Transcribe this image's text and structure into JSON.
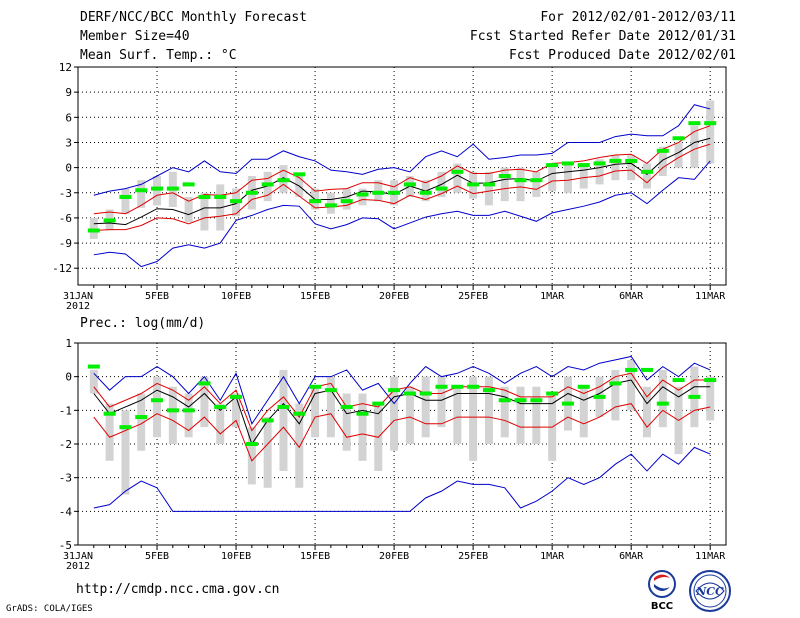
{
  "header": {
    "title": "DERF/NCC/BCC Monthly Forecast",
    "member_size": "Member Size=40",
    "variable": "Mean Surf. Temp.: °C",
    "period": "For 2012/02/01-2012/03/11",
    "fcst_started": "Fcst Started Refer Date 2012/01/31",
    "fcst_produced": "Fcst Produced Date 2012/02/01"
  },
  "footer": {
    "url": "http://cmdp.ncc.cma.gov.cn",
    "credit": "GrADS: COLA/IGES",
    "logo_bcc": "BCC",
    "logo_ncc": "NCC"
  },
  "colors": {
    "box": "#d3d3d3",
    "median": "#00ee00",
    "mean": "#000000",
    "sd_band": "#e00000",
    "extreme": "#0000cc",
    "grid": "#000000"
  },
  "chart_data": [
    {
      "type": "line",
      "title": "Mean Surf. Temp.: °C",
      "x_tick_labels": [
        "31JAN\n2012",
        "5FEB",
        "10FEB",
        "15FEB",
        "20FEB",
        "25FEB",
        "1MAR",
        "6MAR",
        "11MAR"
      ],
      "x_tick_days": [
        0,
        5,
        10,
        15,
        20,
        25,
        30,
        35,
        40
      ],
      "ylim": [
        -14,
        12
      ],
      "yticks": [
        -12,
        -9,
        -6,
        -3,
        0,
        3,
        6,
        9,
        12
      ],
      "days": [
        1,
        2,
        3,
        4,
        5,
        6,
        7,
        8,
        9,
        10,
        11,
        12,
        13,
        14,
        15,
        16,
        17,
        18,
        19,
        20,
        21,
        22,
        23,
        24,
        25,
        26,
        27,
        28,
        29,
        30,
        31,
        32,
        33,
        34,
        35,
        36,
        37,
        38,
        39,
        40
      ],
      "series": [
        {
          "name": "max",
          "role": "extreme",
          "values": [
            -3.3,
            -2.8,
            -2.5,
            -2.0,
            -1.0,
            0.0,
            -0.5,
            0.8,
            -0.5,
            -0.7,
            1.0,
            1.0,
            2.0,
            1.3,
            0.8,
            -0.3,
            -0.5,
            -0.8,
            -0.2,
            0.0,
            -0.5,
            1.3,
            2.0,
            1.3,
            2.8,
            1.0,
            1.2,
            1.5,
            1.5,
            1.7,
            3.0,
            3.0,
            3.0,
            3.7,
            4.0,
            3.8,
            3.8,
            5.0,
            7.5,
            7.0
          ]
        },
        {
          "name": "mean+sd",
          "role": "sd",
          "values": [
            -5.5,
            -5.3,
            -5.5,
            -4.5,
            -3.3,
            -3.0,
            -4.0,
            -3.2,
            -3.3,
            -3.0,
            -1.5,
            -1.3,
            -0.3,
            -1.2,
            -2.8,
            -2.6,
            -2.5,
            -1.8,
            -1.8,
            -2.3,
            -1.2,
            -1.8,
            -1.0,
            0.2,
            -0.7,
            -0.7,
            -0.3,
            -0.2,
            -0.5,
            0.5,
            0.6,
            0.8,
            1.2,
            1.5,
            1.6,
            0.5,
            2.2,
            3.0,
            4.3,
            5.0
          ]
        },
        {
          "name": "mean",
          "role": "mean",
          "values": [
            -6.7,
            -6.6,
            -6.8,
            -5.9,
            -4.9,
            -5.0,
            -5.6,
            -4.8,
            -4.8,
            -4.3,
            -2.7,
            -2.2,
            -1.2,
            -2.2,
            -3.8,
            -3.8,
            -3.5,
            -2.8,
            -2.9,
            -3.2,
            -2.2,
            -2.8,
            -2.0,
            -0.9,
            -1.9,
            -1.8,
            -1.4,
            -1.3,
            -1.6,
            -0.7,
            -0.5,
            -0.3,
            0.0,
            0.4,
            0.5,
            -0.8,
            0.9,
            1.8,
            3.0,
            3.5
          ]
        },
        {
          "name": "mean-sd",
          "role": "sd",
          "values": [
            -7.5,
            -7.4,
            -7.4,
            -6.9,
            -6.0,
            -6.1,
            -6.7,
            -6.0,
            -5.8,
            -5.5,
            -3.8,
            -3.3,
            -2.0,
            -3.4,
            -4.8,
            -4.7,
            -4.5,
            -3.8,
            -3.9,
            -4.3,
            -3.3,
            -3.8,
            -3.1,
            -2.2,
            -3.1,
            -2.8,
            -2.5,
            -2.3,
            -2.6,
            -1.6,
            -1.5,
            -1.2,
            -1.0,
            -0.4,
            -0.3,
            -1.8,
            0.0,
            1.2,
            2.2,
            2.8
          ]
        },
        {
          "name": "min",
          "role": "extreme",
          "values": [
            -10.4,
            -10.1,
            -10.3,
            -11.8,
            -11.2,
            -9.6,
            -9.2,
            -9.6,
            -9.0,
            -6.3,
            -5.7,
            -5.0,
            -4.5,
            -4.6,
            -6.7,
            -7.3,
            -6.8,
            -6.0,
            -6.1,
            -7.3,
            -6.6,
            -5.9,
            -5.5,
            -5.2,
            -5.7,
            -5.7,
            -5.2,
            -5.8,
            -6.4,
            -5.4,
            -5.0,
            -4.6,
            -4.1,
            -3.3,
            -3.0,
            -4.3,
            -2.7,
            -1.2,
            -1.4,
            0.8
          ]
        },
        {
          "name": "box_low",
          "role": "box",
          "values": [
            -8.5,
            -7.5,
            -5.5,
            -4.8,
            -4.5,
            -4.7,
            -6.5,
            -7.5,
            -7.5,
            -5.8,
            -5.0,
            -4.0,
            -3.0,
            -3.5,
            -5.0,
            -5.5,
            -5.0,
            -4.5,
            -4.0,
            -4.5,
            -3.5,
            -4.0,
            -3.5,
            -3.0,
            -3.7,
            -4.5,
            -4.0,
            -4.0,
            -3.5,
            -2.8,
            -3.0,
            -2.5,
            -2.0,
            -1.5,
            -1.5,
            -2.5,
            -1.0,
            0.0,
            0.0,
            0.5
          ]
        },
        {
          "name": "box_high",
          "role": "box",
          "values": [
            -6.0,
            -5.0,
            -2.5,
            -1.5,
            -1.0,
            -0.5,
            -3.5,
            -3.0,
            -2.0,
            -2.5,
            -1.0,
            -0.5,
            0.3,
            -1.0,
            -2.5,
            -3.0,
            -2.5,
            -2.5,
            -1.5,
            -1.5,
            -1.0,
            -1.5,
            -0.5,
            0.5,
            -0.5,
            -0.5,
            0.0,
            0.0,
            -0.5,
            0.5,
            0.5,
            0.3,
            1.0,
            1.5,
            1.5,
            0.5,
            2.5,
            3.0,
            5.0,
            8.0
          ]
        },
        {
          "name": "median",
          "role": "median",
          "values": [
            -7.5,
            -6.3,
            -3.5,
            -2.7,
            -2.5,
            -2.5,
            -2.0,
            -3.5,
            -3.5,
            -4.0,
            -3.0,
            -2.0,
            -1.5,
            -0.8,
            -4.0,
            -4.5,
            -4.0,
            -3.2,
            -3.0,
            -3.0,
            -2.0,
            -3.0,
            -2.5,
            -0.5,
            -2.0,
            -2.0,
            -1.0,
            -1.5,
            -1.5,
            0.3,
            0.5,
            0.3,
            0.5,
            0.8,
            0.8,
            -0.5,
            2.0,
            3.5,
            5.3,
            5.3
          ]
        }
      ]
    },
    {
      "type": "line",
      "title": "Prec.: log(mm/d)",
      "x_tick_labels": [
        "31JAN\n2012",
        "5FEB",
        "10FEB",
        "15FEB",
        "20FEB",
        "25FEB",
        "1MAR",
        "6MAR",
        "11MAR"
      ],
      "x_tick_days": [
        0,
        5,
        10,
        15,
        20,
        25,
        30,
        35,
        40
      ],
      "ylim": [
        -5,
        1
      ],
      "yticks": [
        -5,
        -4,
        -3,
        -2,
        -1,
        0,
        1
      ],
      "days": [
        1,
        2,
        3,
        4,
        5,
        6,
        7,
        8,
        9,
        10,
        11,
        12,
        13,
        14,
        15,
        16,
        17,
        18,
        19,
        20,
        21,
        22,
        23,
        24,
        25,
        26,
        27,
        28,
        29,
        30,
        31,
        32,
        33,
        34,
        35,
        36,
        37,
        38,
        39,
        40
      ],
      "series": [
        {
          "name": "max",
          "role": "extreme",
          "values": [
            0.1,
            -0.4,
            0.0,
            0.0,
            0.3,
            0.0,
            -0.5,
            0.0,
            -0.7,
            0.1,
            -1.4,
            -0.7,
            0.0,
            -0.8,
            0.0,
            0.0,
            0.2,
            -0.4,
            -0.2,
            -0.8,
            -0.2,
            0.3,
            0.0,
            0.1,
            0.3,
            0.1,
            -0.2,
            0.1,
            0.3,
            0.0,
            0.3,
            0.2,
            0.4,
            0.5,
            0.6,
            -0.1,
            0.3,
            0.0,
            0.4,
            0.2
          ]
        },
        {
          "name": "mean+sd",
          "role": "sd",
          "values": [
            -0.3,
            -0.9,
            -0.7,
            -0.5,
            -0.2,
            -0.4,
            -0.7,
            -0.3,
            -0.8,
            -0.4,
            -1.6,
            -1.0,
            -0.6,
            -1.2,
            -0.3,
            -0.2,
            -0.9,
            -0.8,
            -0.9,
            -0.4,
            -0.3,
            -0.5,
            -0.5,
            -0.3,
            -0.3,
            -0.3,
            -0.4,
            -0.6,
            -0.6,
            -0.6,
            -0.3,
            -0.5,
            -0.3,
            0.0,
            0.1,
            -0.6,
            -0.1,
            -0.4,
            -0.1,
            -0.1
          ]
        },
        {
          "name": "mean",
          "role": "mean",
          "values": [
            -0.5,
            -1.1,
            -0.9,
            -0.7,
            -0.4,
            -0.6,
            -0.9,
            -0.5,
            -1.0,
            -0.6,
            -2.0,
            -1.3,
            -0.8,
            -1.4,
            -0.5,
            -0.4,
            -1.1,
            -1.0,
            -1.1,
            -0.6,
            -0.5,
            -0.7,
            -0.7,
            -0.5,
            -0.5,
            -0.5,
            -0.6,
            -0.8,
            -0.8,
            -0.8,
            -0.5,
            -0.7,
            -0.5,
            -0.2,
            -0.1,
            -0.8,
            -0.3,
            -0.6,
            -0.3,
            -0.3
          ]
        },
        {
          "name": "mean-sd",
          "role": "sd",
          "values": [
            -1.2,
            -1.8,
            -1.6,
            -1.4,
            -1.1,
            -1.3,
            -1.6,
            -1.2,
            -1.7,
            -1.3,
            -2.5,
            -2.0,
            -1.5,
            -2.1,
            -1.2,
            -1.1,
            -1.8,
            -1.7,
            -1.8,
            -1.3,
            -1.2,
            -1.4,
            -1.4,
            -1.2,
            -1.2,
            -1.2,
            -1.3,
            -1.5,
            -1.5,
            -1.5,
            -1.2,
            -1.4,
            -1.2,
            -0.9,
            -0.8,
            -1.5,
            -1.0,
            -1.3,
            -1.0,
            -0.9
          ]
        },
        {
          "name": "min",
          "role": "extreme",
          "values": [
            -3.9,
            -3.8,
            -3.4,
            -3.1,
            -3.3,
            -4.0,
            -4.0,
            -4.0,
            -4.0,
            -4.0,
            -4.0,
            -4.0,
            -4.0,
            -4.0,
            -4.0,
            -4.0,
            -4.0,
            -4.0,
            -4.0,
            -4.0,
            -4.0,
            -3.6,
            -3.4,
            -3.1,
            -3.2,
            -3.2,
            -3.3,
            -3.9,
            -3.7,
            -3.4,
            -3.0,
            -3.2,
            -3.0,
            -2.6,
            -2.3,
            -2.8,
            -2.3,
            -2.6,
            -2.1,
            -2.3
          ]
        },
        {
          "name": "box_low",
          "role": "box",
          "values": [
            -0.5,
            -2.5,
            -3.5,
            -2.2,
            -1.8,
            -2.0,
            -1.8,
            -1.5,
            -2.0,
            -1.5,
            -3.2,
            -3.3,
            -2.8,
            -3.3,
            -1.8,
            -1.8,
            -2.2,
            -2.5,
            -2.8,
            -2.2,
            -2.0,
            -1.8,
            -1.5,
            -2.0,
            -2.5,
            -2.0,
            -1.8,
            -2.0,
            -2.0,
            -2.5,
            -1.6,
            -1.8,
            -1.2,
            -1.3,
            -1.0,
            -1.8,
            -1.5,
            -2.3,
            -1.5,
            -1.3
          ]
        },
        {
          "name": "box_high",
          "role": "box",
          "values": [
            0.2,
            -0.8,
            -1.0,
            -0.5,
            0.0,
            -0.3,
            -0.5,
            0.0,
            -0.8,
            -0.5,
            -1.5,
            -1.2,
            0.2,
            -0.8,
            -0.3,
            0.0,
            -0.5,
            -0.5,
            -0.8,
            0.0,
            -0.3,
            0.0,
            0.0,
            -0.3,
            0.0,
            0.0,
            -0.3,
            -0.3,
            -0.3,
            -0.5,
            0.0,
            -0.3,
            0.0,
            0.2,
            0.5,
            -0.3,
            0.2,
            -0.3,
            0.3,
            0.0
          ]
        },
        {
          "name": "median",
          "role": "median",
          "values": [
            0.3,
            -1.1,
            -1.5,
            -1.2,
            -0.7,
            -1.0,
            -1.0,
            -0.2,
            -0.9,
            -0.6,
            -2.0,
            -1.3,
            -0.9,
            -1.1,
            -0.3,
            -0.4,
            -0.9,
            -1.1,
            -0.8,
            -0.4,
            -0.5,
            -0.5,
            -0.3,
            -0.3,
            -0.3,
            -0.4,
            -0.7,
            -0.7,
            -0.7,
            -0.5,
            -0.8,
            -0.3,
            -0.6,
            -0.2,
            0.2,
            0.2,
            -0.8,
            -0.1,
            -0.6,
            -0.1
          ]
        }
      ]
    }
  ]
}
